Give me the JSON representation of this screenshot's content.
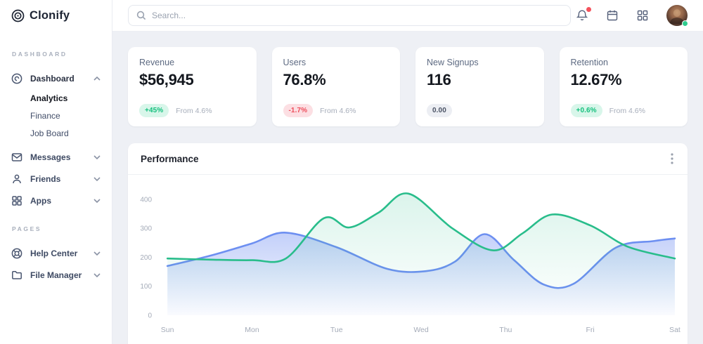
{
  "brand": {
    "name": "Clonify"
  },
  "sidebar": {
    "section_dashboard": "DASHBOARD",
    "section_pages": "PAGES",
    "items": {
      "dashboard": "Dashboard",
      "analytics": "Analytics",
      "finance": "Finance",
      "job_board": "Job Board",
      "messages": "Messages",
      "friends": "Friends",
      "apps": "Apps",
      "help_center": "Help Center",
      "file_manager": "File Manager"
    }
  },
  "topbar": {
    "search_placeholder": "Search..."
  },
  "cards": [
    {
      "label": "Revenue",
      "value": "$56,945",
      "badge": "+45%",
      "badge_type": "positive",
      "note": "From 4.6%"
    },
    {
      "label": "Users",
      "value": "76.8%",
      "badge": "-1.7%",
      "badge_type": "negative",
      "note": "From 4.6%"
    },
    {
      "label": "New Signups",
      "value": "116",
      "badge": "0.00",
      "badge_type": "neutral",
      "note": ""
    },
    {
      "label": "Retention",
      "value": "12.67%",
      "badge": "+0.6%",
      "badge_type": "positive",
      "note": "From 4.6%"
    }
  ],
  "performance": {
    "title": "Performance"
  },
  "colors": {
    "accent_green": "#29bd8b",
    "accent_blue": "#6d8ff1",
    "positive": "#14c07d",
    "negative": "#ee4d5b",
    "notification_red": "#f4525c",
    "online_green": "#2ecc8e"
  },
  "chart_data": {
    "type": "area",
    "title": "Performance",
    "xlabel": "",
    "ylabel": "",
    "categories": [
      "Sun",
      "Mon",
      "Tue",
      "Wed",
      "Thu",
      "Fri",
      "Sat"
    ],
    "y_ticks": [
      0,
      100,
      200,
      300,
      400
    ],
    "ylim": [
      0,
      450
    ],
    "grid": false,
    "legend": "none",
    "series": [
      {
        "name": "series-blue",
        "color": "#6d8ff1",
        "fill_top": "rgba(122,150,242,0.45)",
        "fill_bottom": "rgba(122,150,242,0.04)",
        "day_values_at_labels": [
          170,
          248,
          235,
          152,
          200,
          130,
          265
        ],
        "points": [
          [
            0,
            170
          ],
          [
            0.5,
            205
          ],
          [
            1,
            248
          ],
          [
            1.4,
            285
          ],
          [
            2.0,
            235
          ],
          [
            2.6,
            160
          ],
          [
            3.05,
            152
          ],
          [
            3.4,
            185
          ],
          [
            3.75,
            280
          ],
          [
            4.1,
            190
          ],
          [
            4.45,
            106
          ],
          [
            4.8,
            108
          ],
          [
            5.3,
            233
          ],
          [
            5.75,
            256
          ],
          [
            6,
            265
          ]
        ]
      },
      {
        "name": "series-green",
        "color": "#29bd8b",
        "fill_top": "rgba(41,189,139,0.17)",
        "fill_bottom": "rgba(41,189,139,0.0)",
        "day_values_at_labels": [
          196,
          190,
          310,
          415,
          240,
          310,
          196
        ],
        "points": [
          [
            0,
            196
          ],
          [
            0.5,
            192
          ],
          [
            1,
            190
          ],
          [
            1.4,
            196
          ],
          [
            1.85,
            335
          ],
          [
            2.15,
            303
          ],
          [
            2.5,
            355
          ],
          [
            2.85,
            420
          ],
          [
            3.37,
            300
          ],
          [
            3.85,
            224
          ],
          [
            4.2,
            283
          ],
          [
            4.55,
            348
          ],
          [
            5.0,
            310
          ],
          [
            5.45,
            236
          ],
          [
            6,
            196
          ]
        ]
      }
    ]
  }
}
